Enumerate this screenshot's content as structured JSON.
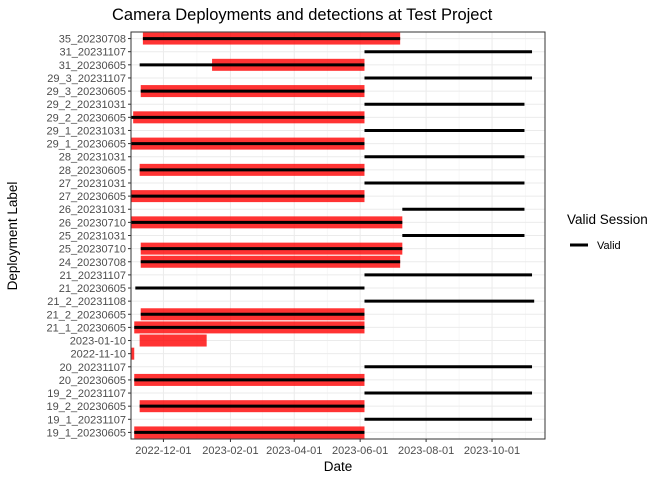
{
  "chart_data": {
    "type": "timeline",
    "title": "Camera Deployments and detections at Test Project",
    "xlabel": "Date",
    "ylabel": "Deployment Label",
    "xlim": [
      "2022-11-01",
      "2023-11-19"
    ],
    "x_ticks": [
      "2022-12-01",
      "2023-02-01",
      "2023-04-01",
      "2023-06-01",
      "2023-08-01",
      "2023-10-01"
    ],
    "grid": true,
    "legend": {
      "title": "Valid Session",
      "placement": "right",
      "entries": [
        {
          "label": "Valid",
          "color": "#000000"
        }
      ]
    },
    "detection_color": "#ff0000",
    "deployments": [
      {
        "label": "19_1_20230605",
        "session": [
          "2022-11-04",
          "2023-06-05"
        ],
        "detections": [
          "2022-11-04",
          "2023-06-05"
        ]
      },
      {
        "label": "19_1_20231107",
        "session": [
          "2023-06-05",
          "2023-11-07"
        ],
        "detections": null
      },
      {
        "label": "19_2_20230605",
        "session": [
          "2022-11-09",
          "2023-06-05"
        ],
        "detections": [
          "2022-11-09",
          "2023-06-05"
        ]
      },
      {
        "label": "19_2_20231107",
        "session": [
          "2023-06-05",
          "2023-11-07"
        ],
        "detections": null
      },
      {
        "label": "20_20230605",
        "session": [
          "2022-11-04",
          "2023-06-05"
        ],
        "detections": [
          "2022-11-04",
          "2023-06-05"
        ]
      },
      {
        "label": "20_20231107",
        "session": [
          "2023-06-05",
          "2023-11-07"
        ],
        "detections": null
      },
      {
        "label": "2022-11-10",
        "session": null,
        "detections": [
          "2022-11-01",
          "2022-11-04"
        ]
      },
      {
        "label": "2023-01-10",
        "session": null,
        "detections": [
          "2022-11-09",
          "2023-01-10"
        ]
      },
      {
        "label": "21_1_20230605",
        "session": [
          "2022-11-04",
          "2023-06-05"
        ],
        "detections": [
          "2022-11-04",
          "2023-06-05"
        ]
      },
      {
        "label": "21_2_20230605",
        "session": [
          "2022-11-10",
          "2023-06-05"
        ],
        "detections": [
          "2022-11-10",
          "2023-06-05"
        ]
      },
      {
        "label": "21_2_20231108",
        "session": [
          "2023-06-05",
          "2023-11-09"
        ],
        "detections": null
      },
      {
        "label": "21_20230605",
        "session": [
          "2022-11-05",
          "2023-06-05"
        ],
        "detections": null
      },
      {
        "label": "21_20231107",
        "session": [
          "2023-06-05",
          "2023-11-07"
        ],
        "detections": null
      },
      {
        "label": "24_20230708",
        "session": [
          "2022-11-10",
          "2023-07-08"
        ],
        "detections": [
          "2022-11-10",
          "2023-07-08"
        ]
      },
      {
        "label": "25_20230710",
        "session": [
          "2022-11-10",
          "2023-07-10"
        ],
        "detections": [
          "2022-11-10",
          "2023-07-10"
        ]
      },
      {
        "label": "25_20231031",
        "session": [
          "2023-07-10",
          "2023-10-31"
        ],
        "detections": null
      },
      {
        "label": "26_20230710",
        "session": [
          "2022-11-01",
          "2023-07-10"
        ],
        "detections": [
          "2022-11-01",
          "2023-07-10"
        ]
      },
      {
        "label": "26_20231031",
        "session": [
          "2023-07-10",
          "2023-10-31"
        ],
        "detections": null
      },
      {
        "label": "27_20230605",
        "session": [
          "2022-11-01",
          "2023-06-05"
        ],
        "detections": [
          "2022-11-01",
          "2023-06-05"
        ]
      },
      {
        "label": "27_20231031",
        "session": [
          "2023-06-05",
          "2023-10-31"
        ],
        "detections": null
      },
      {
        "label": "28_20230605",
        "session": [
          "2022-11-09",
          "2023-06-05"
        ],
        "detections": [
          "2022-11-09",
          "2023-06-05"
        ]
      },
      {
        "label": "28_20231031",
        "session": [
          "2023-06-05",
          "2023-10-31"
        ],
        "detections": null
      },
      {
        "label": "29_1_20230605",
        "session": [
          "2022-11-01",
          "2023-06-05"
        ],
        "detections": [
          "2022-11-01",
          "2023-06-05"
        ]
      },
      {
        "label": "29_1_20231031",
        "session": [
          "2023-06-05",
          "2023-10-31"
        ],
        "detections": null
      },
      {
        "label": "29_2_20230605",
        "session": [
          "2022-11-01",
          "2023-06-05"
        ],
        "detections": [
          "2022-11-03",
          "2023-06-05"
        ]
      },
      {
        "label": "29_2_20231031",
        "session": [
          "2023-06-05",
          "2023-10-31"
        ],
        "detections": null
      },
      {
        "label": "29_3_20230605",
        "session": [
          "2022-11-10",
          "2023-06-05"
        ],
        "detections": [
          "2022-11-10",
          "2023-06-05"
        ]
      },
      {
        "label": "29_3_20231107",
        "session": [
          "2023-06-05",
          "2023-11-07"
        ],
        "detections": null
      },
      {
        "label": "31_20230605",
        "session": [
          "2022-11-09",
          "2023-06-05"
        ],
        "detections": [
          "2023-01-15",
          "2023-06-05"
        ]
      },
      {
        "label": "31_20231107",
        "session": [
          "2023-06-05",
          "2023-11-07"
        ],
        "detections": null
      },
      {
        "label": "35_20230708",
        "session": [
          "2022-11-12",
          "2023-07-08"
        ],
        "detections": [
          "2022-11-12",
          "2023-07-08"
        ]
      }
    ]
  }
}
